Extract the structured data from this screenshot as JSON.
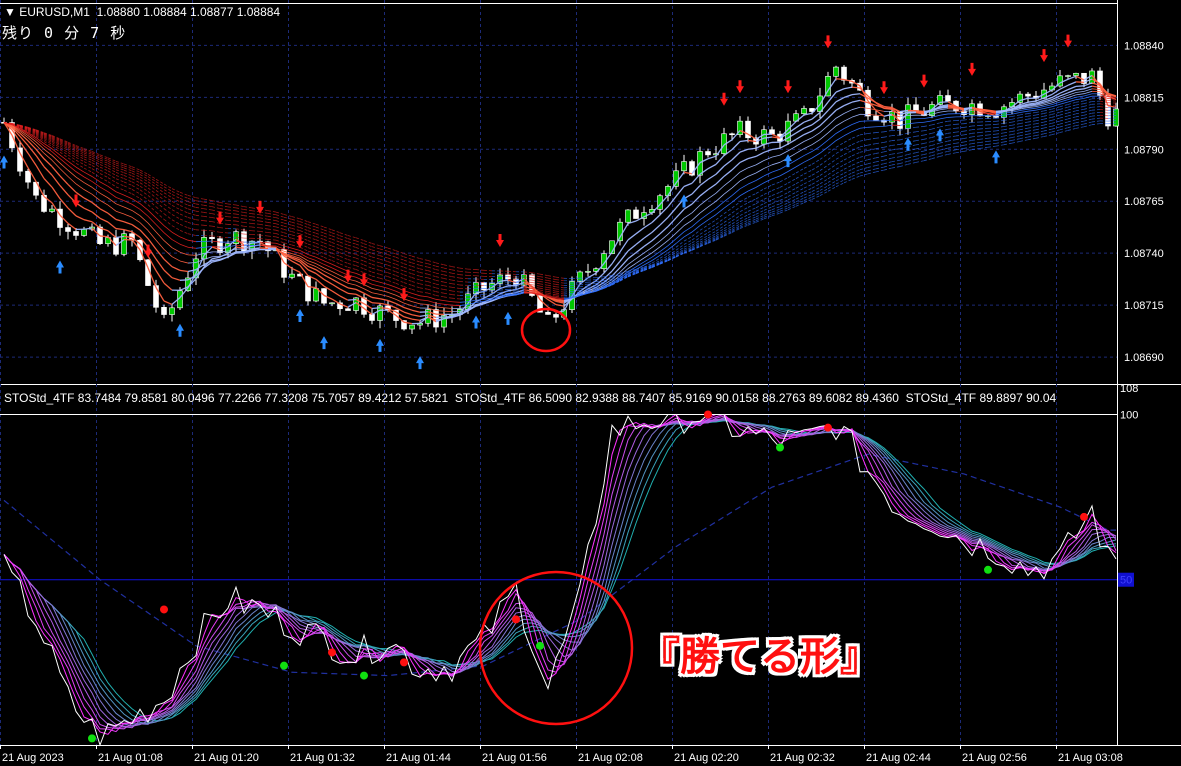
{
  "header": {
    "symbol": "EURUSD,M1",
    "ohlc": "1.08880 1.08884 1.08877 1.08884"
  },
  "timer": {
    "prefix": "残り",
    "minutes": "0",
    "min_unit": "分",
    "seconds": "7",
    "sec_unit": "秒"
  },
  "indicator_label": "STOStd_4TF 83.7484 79.8581 80.0496 77.2266 77.3208 75.7057 89.4212 57.5821  STOStd_4TF 86.5090 82.9388 88.7407 85.9169 90.0158 88.2763 89.6082 89.4360  STOStd_4TF 89.8897 90.04",
  "annotation": "『勝てる形』",
  "colors": {
    "bull": "#00c800",
    "bear": "#ffffff",
    "grid": "#1c2a78",
    "ma_down": "#e02020",
    "ma_up": "#3070ff",
    "stoch_fast": "#ff30ff",
    "stoch_slow": "#20b0b0",
    "annotation": "#ff1010"
  },
  "chart_data": [
    {
      "type": "candlestick",
      "title": "EURUSD,M1",
      "price_ticks": [
        "1.08840",
        "1.08815",
        "1.08790",
        "1.08765",
        "1.08740",
        "1.08715",
        "1.08690"
      ],
      "ylim": [
        1.08678,
        1.08858
      ],
      "time_ticks": [
        "21 Aug 2023",
        "21 Aug 01:08",
        "21 Aug 01:20",
        "21 Aug 01:32",
        "21 Aug 01:44",
        "21 Aug 01:56",
        "21 Aug 02:08",
        "21 Aug 02:20",
        "21 Aug 02:32",
        "21 Aug 02:44",
        "21 Aug 02:56",
        "21 Aug 03:08"
      ],
      "grid": true,
      "close_path": [
        [
          "00:56",
          1.08803
        ],
        [
          "01:00",
          1.08766
        ],
        [
          "01:04",
          1.08755
        ],
        [
          "01:08",
          1.08744
        ],
        [
          "01:12",
          1.08745
        ],
        [
          "01:16",
          1.08705
        ],
        [
          "01:20",
          1.0874
        ],
        [
          "01:24",
          1.08748
        ],
        [
          "01:28",
          1.08746
        ],
        [
          "01:32",
          1.08728
        ],
        [
          "01:36",
          1.08716
        ],
        [
          "01:40",
          1.08717
        ],
        [
          "01:44",
          1.0871
        ],
        [
          "01:48",
          1.08707
        ],
        [
          "01:52",
          1.08711
        ],
        [
          "01:56",
          1.08723
        ],
        [
          "02:00",
          1.0873
        ],
        [
          "02:04",
          1.08705
        ],
        [
          "02:08",
          1.08727
        ],
        [
          "02:12",
          1.08748
        ],
        [
          "02:16",
          1.08764
        ],
        [
          "02:20",
          1.08775
        ],
        [
          "02:24",
          1.0879
        ],
        [
          "02:28",
          1.08798
        ],
        [
          "02:32",
          1.08796
        ],
        [
          "02:36",
          1.08805
        ],
        [
          "02:40",
          1.0883
        ],
        [
          "02:44",
          1.08812
        ],
        [
          "02:48",
          1.08804
        ],
        [
          "02:52",
          1.0881
        ],
        [
          "02:56",
          1.08812
        ],
        [
          "03:00",
          1.0881
        ],
        [
          "03:04",
          1.08816
        ],
        [
          "03:08",
          1.08822
        ],
        [
          "03:12",
          1.08825
        ],
        [
          "03:14",
          1.08807
        ]
      ],
      "sell_arrows": [
        "01:05",
        "01:14",
        "01:23",
        "01:28",
        "01:33",
        "01:39",
        "01:41",
        "01:46",
        "01:58",
        "02:26",
        "02:28",
        "02:34",
        "02:39",
        "02:46",
        "02:51",
        "02:57",
        "03:06",
        "03:09"
      ],
      "buy_arrows": [
        "00:56",
        "01:03",
        "01:18",
        "01:33",
        "01:36",
        "01:43",
        "01:48",
        "01:55",
        "01:59",
        "02:21",
        "02:34",
        "02:49",
        "02:53",
        "03:00"
      ]
    },
    {
      "type": "line",
      "title": "STOStd_4TF",
      "ylim": [
        0,
        108
      ],
      "y_ticks": [
        "108",
        "100",
        "50",
        "0"
      ],
      "level_line": 50,
      "series_fast": [
        [
          "00:56",
          53
        ],
        [
          "01:00",
          38
        ],
        [
          "01:04",
          14
        ],
        [
          "01:08",
          2
        ],
        [
          "01:12",
          8
        ],
        [
          "01:16",
          14
        ],
        [
          "01:20",
          32
        ],
        [
          "01:24",
          44
        ],
        [
          "01:28",
          41
        ],
        [
          "01:32",
          36
        ],
        [
          "01:36",
          32
        ],
        [
          "01:40",
          27
        ],
        [
          "01:44",
          32
        ],
        [
          "01:48",
          23
        ],
        [
          "01:52",
          24
        ],
        [
          "01:56",
          32
        ],
        [
          "02:00",
          47
        ],
        [
          "02:04",
          17
        ],
        [
          "02:08",
          44
        ],
        [
          "02:12",
          95
        ],
        [
          "02:16",
          98
        ],
        [
          "02:20",
          99
        ],
        [
          "02:24",
          100
        ],
        [
          "02:28",
          95
        ],
        [
          "02:32",
          92
        ],
        [
          "02:36",
          92
        ],
        [
          "02:40",
          97
        ],
        [
          "02:44",
          83
        ],
        [
          "02:48",
          71
        ],
        [
          "02:52",
          68
        ],
        [
          "02:56",
          62
        ],
        [
          "03:00",
          59
        ],
        [
          "03:04",
          53
        ],
        [
          "03:08",
          56
        ],
        [
          "03:12",
          71
        ],
        [
          "03:14",
          56
        ]
      ],
      "series_long": [
        [
          "00:56",
          74
        ],
        [
          "01:08",
          50
        ],
        [
          "01:20",
          30
        ],
        [
          "01:32",
          22
        ],
        [
          "01:44",
          21
        ],
        [
          "01:56",
          24
        ],
        [
          "02:08",
          38
        ],
        [
          "02:20",
          60
        ],
        [
          "02:32",
          78
        ],
        [
          "02:44",
          88
        ],
        [
          "02:56",
          82
        ],
        [
          "03:08",
          72
        ],
        [
          "03:14",
          65
        ]
      ],
      "dots": [
        [
          "01:07",
          2,
          "green"
        ],
        [
          "01:16",
          41,
          "red"
        ],
        [
          "01:31",
          24,
          "green"
        ],
        [
          "01:37",
          28,
          "red"
        ],
        [
          "01:41",
          21,
          "green"
        ],
        [
          "01:46",
          25,
          "red"
        ],
        [
          "02:00",
          38,
          "red"
        ],
        [
          "02:03",
          30,
          "green"
        ],
        [
          "02:24",
          100,
          "red"
        ],
        [
          "02:33",
          90,
          "green"
        ],
        [
          "02:39",
          96,
          "red"
        ],
        [
          "02:59",
          53,
          "green"
        ],
        [
          "03:11",
          69,
          "red"
        ]
      ]
    }
  ]
}
